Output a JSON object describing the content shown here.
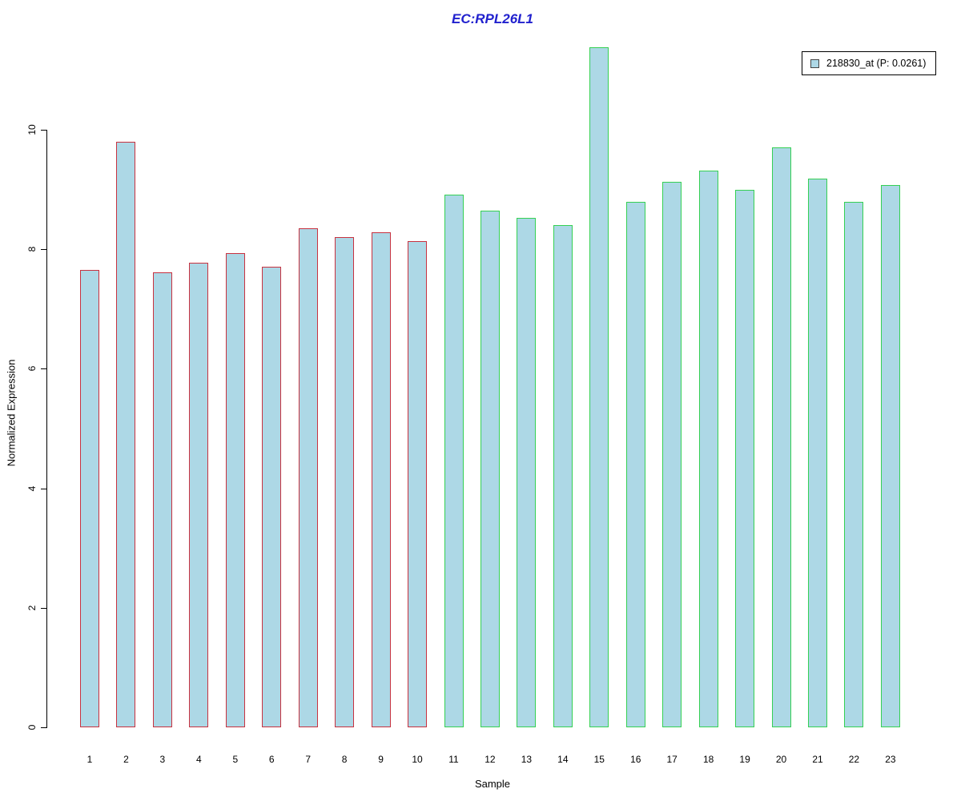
{
  "title": {
    "text": "EC:RPL26L1",
    "color": "#2121CE"
  },
  "chart_data": {
    "type": "bar",
    "title": "EC:RPL26L1",
    "xlabel": "Sample",
    "ylabel": "Normalized Expression",
    "categories": [
      "1",
      "2",
      "3",
      "4",
      "5",
      "6",
      "7",
      "8",
      "9",
      "10",
      "11",
      "12",
      "13",
      "14",
      "15",
      "16",
      "17",
      "18",
      "19",
      "20",
      "21",
      "22",
      "23"
    ],
    "values": [
      7.66,
      9.8,
      7.61,
      7.77,
      7.93,
      7.71,
      8.35,
      8.21,
      8.28,
      8.14,
      8.91,
      8.64,
      8.52,
      8.41,
      11.38,
      8.8,
      9.13,
      9.31,
      9.0,
      9.71,
      9.18,
      8.8,
      9.07
    ],
    "yticks": [
      0,
      2,
      4,
      6,
      8,
      10
    ],
    "ylim": [
      0,
      11.4
    ],
    "grid": "off",
    "legend_position": "top-right",
    "bar_fill": "#ADD8E6",
    "group_borders": [
      {
        "samples": "1-10",
        "border_color": "#C83240"
      },
      {
        "samples": "11-23",
        "border_color": "#35D053"
      }
    ],
    "legend": {
      "label": "218830_at (P: 0.0261)",
      "swatch_fill": "#ADD8E6",
      "swatch_border": "#444444"
    }
  }
}
